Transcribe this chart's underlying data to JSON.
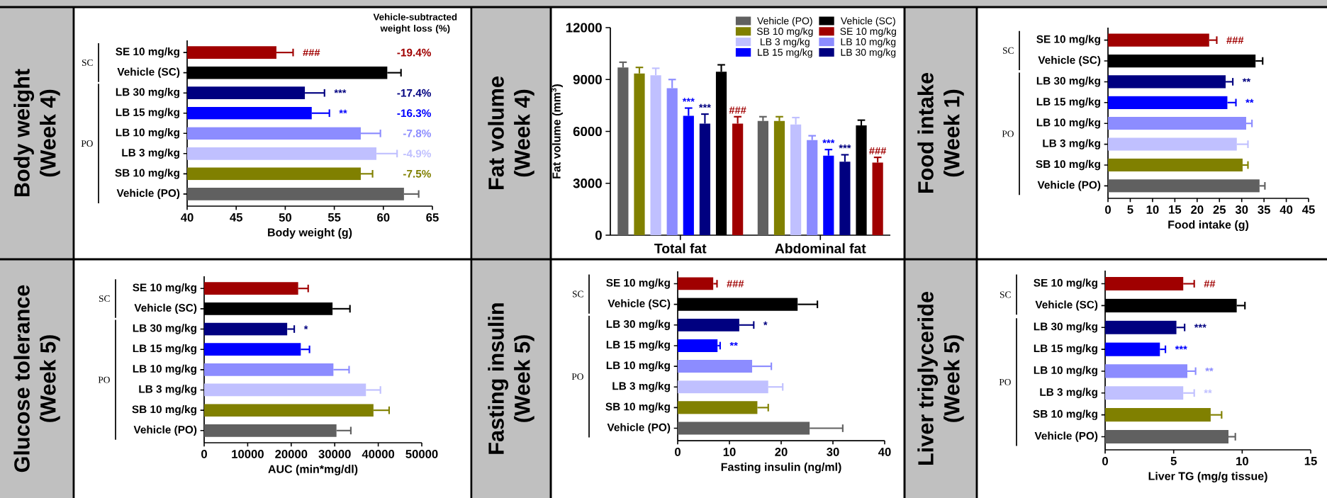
{
  "chart_data": [
    {
      "type": "bar",
      "orientation": "horizontal",
      "title": "Body weight",
      "subtitle": "(Week 4)",
      "xlabel": "Body weight (g)",
      "categories": [
        "SE 10 mg/kg",
        "Vehicle (SC)",
        "LB 30 mg/kg",
        "LB 15 mg/kg",
        "LB 10 mg/kg",
        "LB 3 mg/kg",
        "SB 10 mg/kg",
        "Vehicle (PO)"
      ],
      "values": [
        49.1,
        60.4,
        52.0,
        52.7,
        57.7,
        59.3,
        57.7,
        62.1
      ],
      "colors": [
        "#a00000",
        "#000000",
        "#000080",
        "#0000ff",
        "#8c8cff",
        "#c0c0ff",
        "#808000",
        "#606060"
      ],
      "errors": [
        [
          49.1,
          50.8
        ],
        [
          60.4,
          61.8
        ],
        [
          52.0,
          54.0
        ],
        [
          52.7,
          54.5
        ],
        [
          57.7,
          59.7
        ],
        [
          59.3,
          61.4
        ],
        [
          57.7,
          58.9
        ],
        [
          62.1,
          63.6
        ]
      ],
      "value_labels": [
        "###",
        null,
        "***",
        "**",
        null,
        null,
        null,
        null
      ],
      "xlim": [
        40,
        65
      ],
      "xticks": [
        40,
        45,
        50,
        55,
        60,
        65
      ],
      "annotations": [
        "Vehicle-subtracted weight loss (%)",
        "-19.4%",
        "-17.4%",
        "-16.3%",
        "-7.8%",
        "-4.9%",
        "-7.5%",
        "SC",
        "PO"
      ]
    },
    {
      "type": "bar",
      "title": "Fat volume",
      "subtitle": "(Week 4)",
      "ylabel": "Fat volume (mm$^{3}$)",
      "categories": [
        "Total fat",
        "Abdominal fat"
      ],
      "ylim": [
        0,
        12000
      ],
      "yticks": [
        0,
        3000,
        6000,
        9000,
        12000
      ],
      "legend": "top right",
      "series": [
        {
          "name": "Vehicle (PO)",
          "color": "#606060",
          "values": [
            9700,
            6600
          ],
          "errors": [
            [
              9700,
              10000
            ],
            [
              6600,
              6850
            ]
          ]
        },
        {
          "name": "SB 10 mg/kg",
          "color": "#808000",
          "values": [
            9350,
            6600
          ],
          "errors": [
            [
              9350,
              9700
            ],
            [
              6600,
              6850
            ]
          ]
        },
        {
          "name": "LB 3 mg/kg",
          "color": "#c0c0ff",
          "values": [
            9250,
            6400
          ],
          "errors": [
            [
              9250,
              9650
            ],
            [
              6400,
              6800
            ]
          ]
        },
        {
          "name": "LB 10 mg/kg",
          "color": "#8c8cff",
          "values": [
            8500,
            5500
          ],
          "errors": [
            [
              8500,
              9000
            ],
            [
              5500,
              5750
            ]
          ]
        },
        {
          "name": "LB 15 mg/kg",
          "color": "#0000ff",
          "values": [
            6900,
            4600
          ],
          "errors": [
            [
              6900,
              7350
            ],
            [
              4600,
              4950
            ]
          ],
          "value_labels": [
            "***",
            "***"
          ]
        },
        {
          "name": "LB 30 mg/kg",
          "color": "#000080",
          "values": [
            6450,
            4250
          ],
          "errors": [
            [
              6450,
              7000
            ],
            [
              4250,
              4650
            ]
          ],
          "value_labels": [
            "***",
            "***"
          ]
        },
        {
          "name": "Vehicle (SC)",
          "color": "#000000",
          "values": [
            9450,
            6350
          ],
          "errors": [
            [
              9450,
              9850
            ],
            [
              6350,
              6650
            ]
          ]
        },
        {
          "name": "SE 10 mg/kg",
          "color": "#a00000",
          "values": [
            6450,
            4200
          ],
          "errors": [
            [
              6450,
              6850
            ],
            [
              4200,
              4500
            ]
          ],
          "value_labels": [
            "###",
            "###"
          ]
        }
      ]
    },
    {
      "type": "bar",
      "orientation": "horizontal",
      "title": "Food intake",
      "subtitle": "(Week 1)",
      "xlabel": "Food intake (g)",
      "categories": [
        "SE 10 mg/kg",
        "Vehicle (SC)",
        "LB 30 mg/kg",
        "LB 15 mg/kg",
        "LB 10 mg/kg",
        "LB 3 mg/kg",
        "SB 10 mg/kg",
        "Vehicle (PO)"
      ],
      "values": [
        22.7,
        33.1,
        26.4,
        26.8,
        31.0,
        28.9,
        30.2,
        34.0
      ],
      "colors": [
        "#a00000",
        "#000000",
        "#000080",
        "#0000ff",
        "#8c8cff",
        "#c0c0ff",
        "#808000",
        "#606060"
      ],
      "errors": [
        [
          22.7,
          24.4
        ],
        [
          33.1,
          34.7
        ],
        [
          26.4,
          28.0
        ],
        [
          26.8,
          28.7
        ],
        [
          31.0,
          32.3
        ],
        [
          28.9,
          31.4
        ],
        [
          30.2,
          31.4
        ],
        [
          34.0,
          35.2
        ]
      ],
      "value_labels": [
        "###",
        null,
        "**",
        "**",
        null,
        null,
        null,
        null
      ],
      "xlim": [
        0,
        45
      ],
      "xticks": [
        0,
        5,
        10,
        15,
        20,
        25,
        30,
        35,
        40,
        45
      ],
      "annotations": [
        "SC",
        "PO"
      ]
    },
    {
      "type": "bar",
      "orientation": "horizontal",
      "title": "Glucose tolerance",
      "subtitle": "(Week 5)",
      "xlabel": "AUC (min*mg/dl)",
      "categories": [
        "SE 10 mg/kg",
        "Vehicle (SC)",
        "LB 30 mg/kg",
        "LB 15 mg/kg",
        "LB 10 mg/kg",
        "LB 3 mg/kg",
        "SB 10 mg/kg",
        "Vehicle (PO)"
      ],
      "values": [
        21600,
        29500,
        19100,
        22200,
        29700,
        37200,
        38900,
        30400
      ],
      "colors": [
        "#a00000",
        "#000000",
        "#000080",
        "#0000ff",
        "#8c8cff",
        "#c0c0ff",
        "#808000",
        "#606060"
      ],
      "errors": [
        [
          21600,
          23900
        ],
        [
          29500,
          33500
        ],
        [
          19100,
          20700
        ],
        [
          22200,
          24200
        ],
        [
          29700,
          33300
        ],
        [
          37200,
          40500
        ],
        [
          38900,
          42500
        ],
        [
          30400,
          33700
        ]
      ],
      "value_labels": [
        null,
        null,
        "*",
        null,
        null,
        null,
        null,
        null
      ],
      "xlim": [
        0,
        50000
      ],
      "xticks": [
        0,
        10000,
        20000,
        30000,
        40000,
        50000
      ],
      "annotations": [
        "SC",
        "PO"
      ]
    },
    {
      "type": "bar",
      "orientation": "horizontal",
      "title": "Fasting insulin",
      "subtitle": "(Week 5)",
      "xlabel": "Fasting insulin (ng/ml)",
      "categories": [
        "SE 10 mg/kg",
        "Vehicle (SC)",
        "LB 30 mg/kg",
        "LB 15 mg/kg",
        "LB 10 mg/kg",
        "LB 3 mg/kg",
        "SB 10 mg/kg",
        "Vehicle (PO)"
      ],
      "values": [
        6.9,
        23.2,
        11.9,
        7.7,
        14.4,
        17.5,
        15.4,
        25.5
      ],
      "colors": [
        "#a00000",
        "#000000",
        "#000080",
        "#0000ff",
        "#8c8cff",
        "#c0c0ff",
        "#808000",
        "#606060"
      ],
      "errors": [
        [
          6.9,
          7.6
        ],
        [
          23.2,
          27.0
        ],
        [
          11.9,
          14.7
        ],
        [
          7.7,
          8.2
        ],
        [
          14.4,
          18.1
        ],
        [
          17.5,
          20.3
        ],
        [
          15.4,
          17.5
        ],
        [
          25.5,
          31.9
        ]
      ],
      "value_labels": [
        "###",
        null,
        "*",
        "**",
        null,
        null,
        null,
        null
      ],
      "xlim": [
        0,
        40
      ],
      "xticks": [
        0,
        10,
        20,
        30,
        40
      ],
      "annotations": [
        "SC",
        "PO"
      ]
    },
    {
      "type": "bar",
      "orientation": "horizontal",
      "title": "Liver triglyceride",
      "subtitle": "(Week 5)",
      "xlabel": "Liver TG (mg/g tissue)",
      "categories": [
        "SE 10 mg/kg",
        "Vehicle (SC)",
        "LB 30 mg/kg",
        "LB 15 mg/kg",
        "LB 10 mg/kg",
        "LB 3 mg/kg",
        "SB 10 mg/kg",
        "Vehicle (PO)"
      ],
      "values": [
        5.7,
        9.6,
        5.2,
        4.0,
        6.0,
        5.7,
        7.7,
        9.0
      ],
      "colors": [
        "#a00000",
        "#000000",
        "#000080",
        "#0000ff",
        "#8c8cff",
        "#c0c0ff",
        "#808000",
        "#606060"
      ],
      "errors": [
        [
          5.7,
          6.5
        ],
        [
          9.6,
          10.2
        ],
        [
          5.2,
          5.8
        ],
        [
          4.0,
          4.4
        ],
        [
          6.0,
          6.6
        ],
        [
          5.7,
          6.5
        ],
        [
          7.7,
          8.5
        ],
        [
          9.0,
          9.5
        ]
      ],
      "value_labels": [
        "##",
        null,
        "***",
        "***",
        "**",
        "**",
        null,
        null
      ],
      "xlim": [
        0,
        15
      ],
      "xticks": [
        0,
        5,
        10,
        15
      ],
      "annotations": [
        "SC",
        "PO"
      ]
    }
  ]
}
